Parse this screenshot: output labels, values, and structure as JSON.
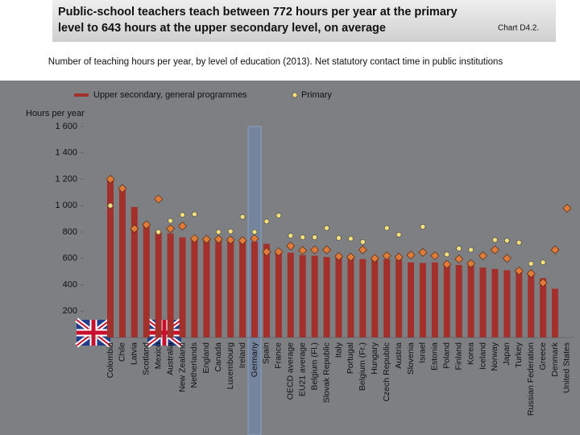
{
  "chart_data": {
    "type": "bar",
    "title": "Public-school teachers teach between 772 hours per year at the primary level to 643 hours at the upper secondary level, on average",
    "chart_label": "Chart D4.2.",
    "subtitle": "Number of teaching hours per year, by level of education (2013). Net statutory contact time in public institutions",
    "y_label": "Hours per year",
    "ylim": [
      0,
      1600
    ],
    "yticks": [
      {
        "value": 200,
        "label": "200"
      },
      {
        "value": 400,
        "label": "400"
      },
      {
        "value": 600,
        "label": "600"
      },
      {
        "value": 800,
        "label": "800"
      },
      {
        "value": 1000,
        "label": "1 000"
      },
      {
        "value": 1200,
        "label": "1 200"
      },
      {
        "value": 1400,
        "label": "1 400"
      },
      {
        "value": 1600,
        "label": "1 600"
      }
    ],
    "highlight_category": "Germany",
    "categories": [
      "Colombia",
      "Chile",
      "Latvia",
      "Scotland",
      "Mexico",
      "Australia",
      "New Zealand",
      "Netherlands",
      "England",
      "Canada",
      "Luxembourg",
      "Ireland",
      "Germany",
      "Spain",
      "France",
      "OECD average",
      "EU21 average",
      "Belgium (Fl.)",
      "Slovak Republic",
      "Italy",
      "Portugal",
      "Belgium (Fr.)",
      "Hungary",
      "Czech Republic",
      "Austria",
      "Slovenia",
      "Israel",
      "Estonia",
      "Poland",
      "Finland",
      "Korea",
      "Iceland",
      "Norway",
      "Japan",
      "Turkey",
      "Russian Federation",
      "Greece",
      "Denmark",
      "United States"
    ],
    "series": [
      {
        "name": "Upper secondary, general programmes",
        "color": "#a3302b",
        "marker": "bar",
        "values": [
          1200,
          1130,
          990,
          855,
          800,
          790,
          760,
          750,
          745,
          745,
          740,
          735,
          725,
          710,
          650,
          643,
          625,
          620,
          610,
          615,
          610,
          595,
          600,
          595,
          590,
          570,
          565,
          570,
          555,
          550,
          545,
          530,
          520,
          510,
          505,
          480,
          450,
          370,
          null
        ]
      },
      {
        "name": "Primary",
        "color": "#f3e07c",
        "marker": "circle",
        "values": [
          1000,
          null,
          null,
          null,
          800,
          885,
          930,
          935,
          745,
          800,
          805,
          915,
          800,
          880,
          925,
          772,
          760,
          760,
          830,
          755,
          750,
          725,
          600,
          830,
          780,
          625,
          840,
          620,
          630,
          675,
          665,
          null,
          740,
          735,
          720,
          560,
          570,
          null,
          null
        ]
      },
      {
        "color": "#e07b39",
        "marker": "diamond",
        "values": [
          1200,
          1130,
          825,
          855,
          1050,
          825,
          845,
          750,
          745,
          745,
          740,
          735,
          750,
          650,
          650,
          694,
          660,
          665,
          665,
          615,
          610,
          665,
          600,
          620,
          610,
          625,
          645,
          620,
          555,
          595,
          560,
          620,
          665,
          600,
          505,
          485,
          415,
          665,
          980
        ]
      }
    ]
  }
}
